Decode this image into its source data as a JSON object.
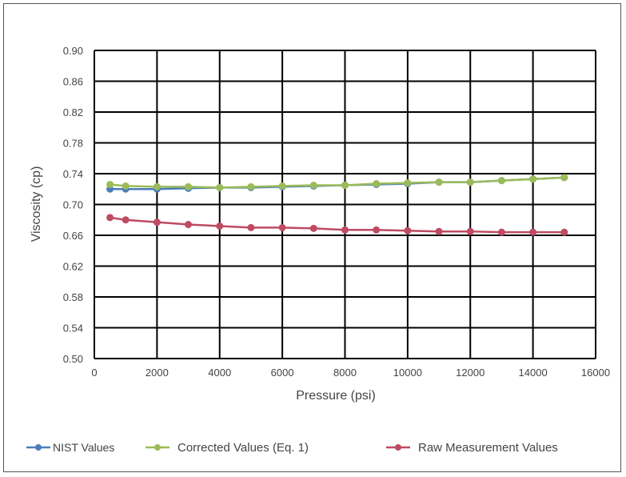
{
  "chart_data": {
    "type": "line",
    "title": "",
    "xlabel": "Pressure (psi)",
    "ylabel": "Viscosity (cp)",
    "xlim": [
      0,
      16000
    ],
    "ylim": [
      0.5,
      0.9
    ],
    "xticks": [
      0,
      2000,
      4000,
      6000,
      8000,
      10000,
      12000,
      14000,
      16000
    ],
    "yticks": [
      "0.50",
      "0.54",
      "0.58",
      "0.62",
      "0.66",
      "0.70",
      "0.74",
      "0.78",
      "0.82",
      "0.86",
      "0.90"
    ],
    "grid": true,
    "legend": "bottom",
    "x": [
      500,
      1000,
      2000,
      3000,
      4000,
      5000,
      6000,
      7000,
      8000,
      9000,
      10000,
      11000,
      12000,
      13000,
      14000,
      15000
    ],
    "series": [
      {
        "name": "NIST Values",
        "color": "#4a7ebb",
        "values": [
          0.72,
          0.72,
          0.72,
          0.721,
          0.722,
          0.722,
          0.723,
          0.724,
          0.725,
          0.726,
          0.727,
          0.729,
          0.729,
          0.731,
          0.733,
          0.735
        ]
      },
      {
        "name": "Corrected Values (Eq. 1)",
        "color": "#9bbb59",
        "values": [
          0.726,
          0.724,
          0.723,
          0.723,
          0.722,
          0.723,
          0.724,
          0.725,
          0.725,
          0.727,
          0.728,
          0.729,
          0.729,
          0.731,
          0.733,
          0.735
        ]
      },
      {
        "name": "Raw Measurement Values",
        "color": "#be4b62",
        "values": [
          0.683,
          0.68,
          0.677,
          0.674,
          0.672,
          0.67,
          0.67,
          0.669,
          0.667,
          0.667,
          0.666,
          0.665,
          0.665,
          0.664,
          0.664,
          0.664
        ]
      }
    ]
  }
}
